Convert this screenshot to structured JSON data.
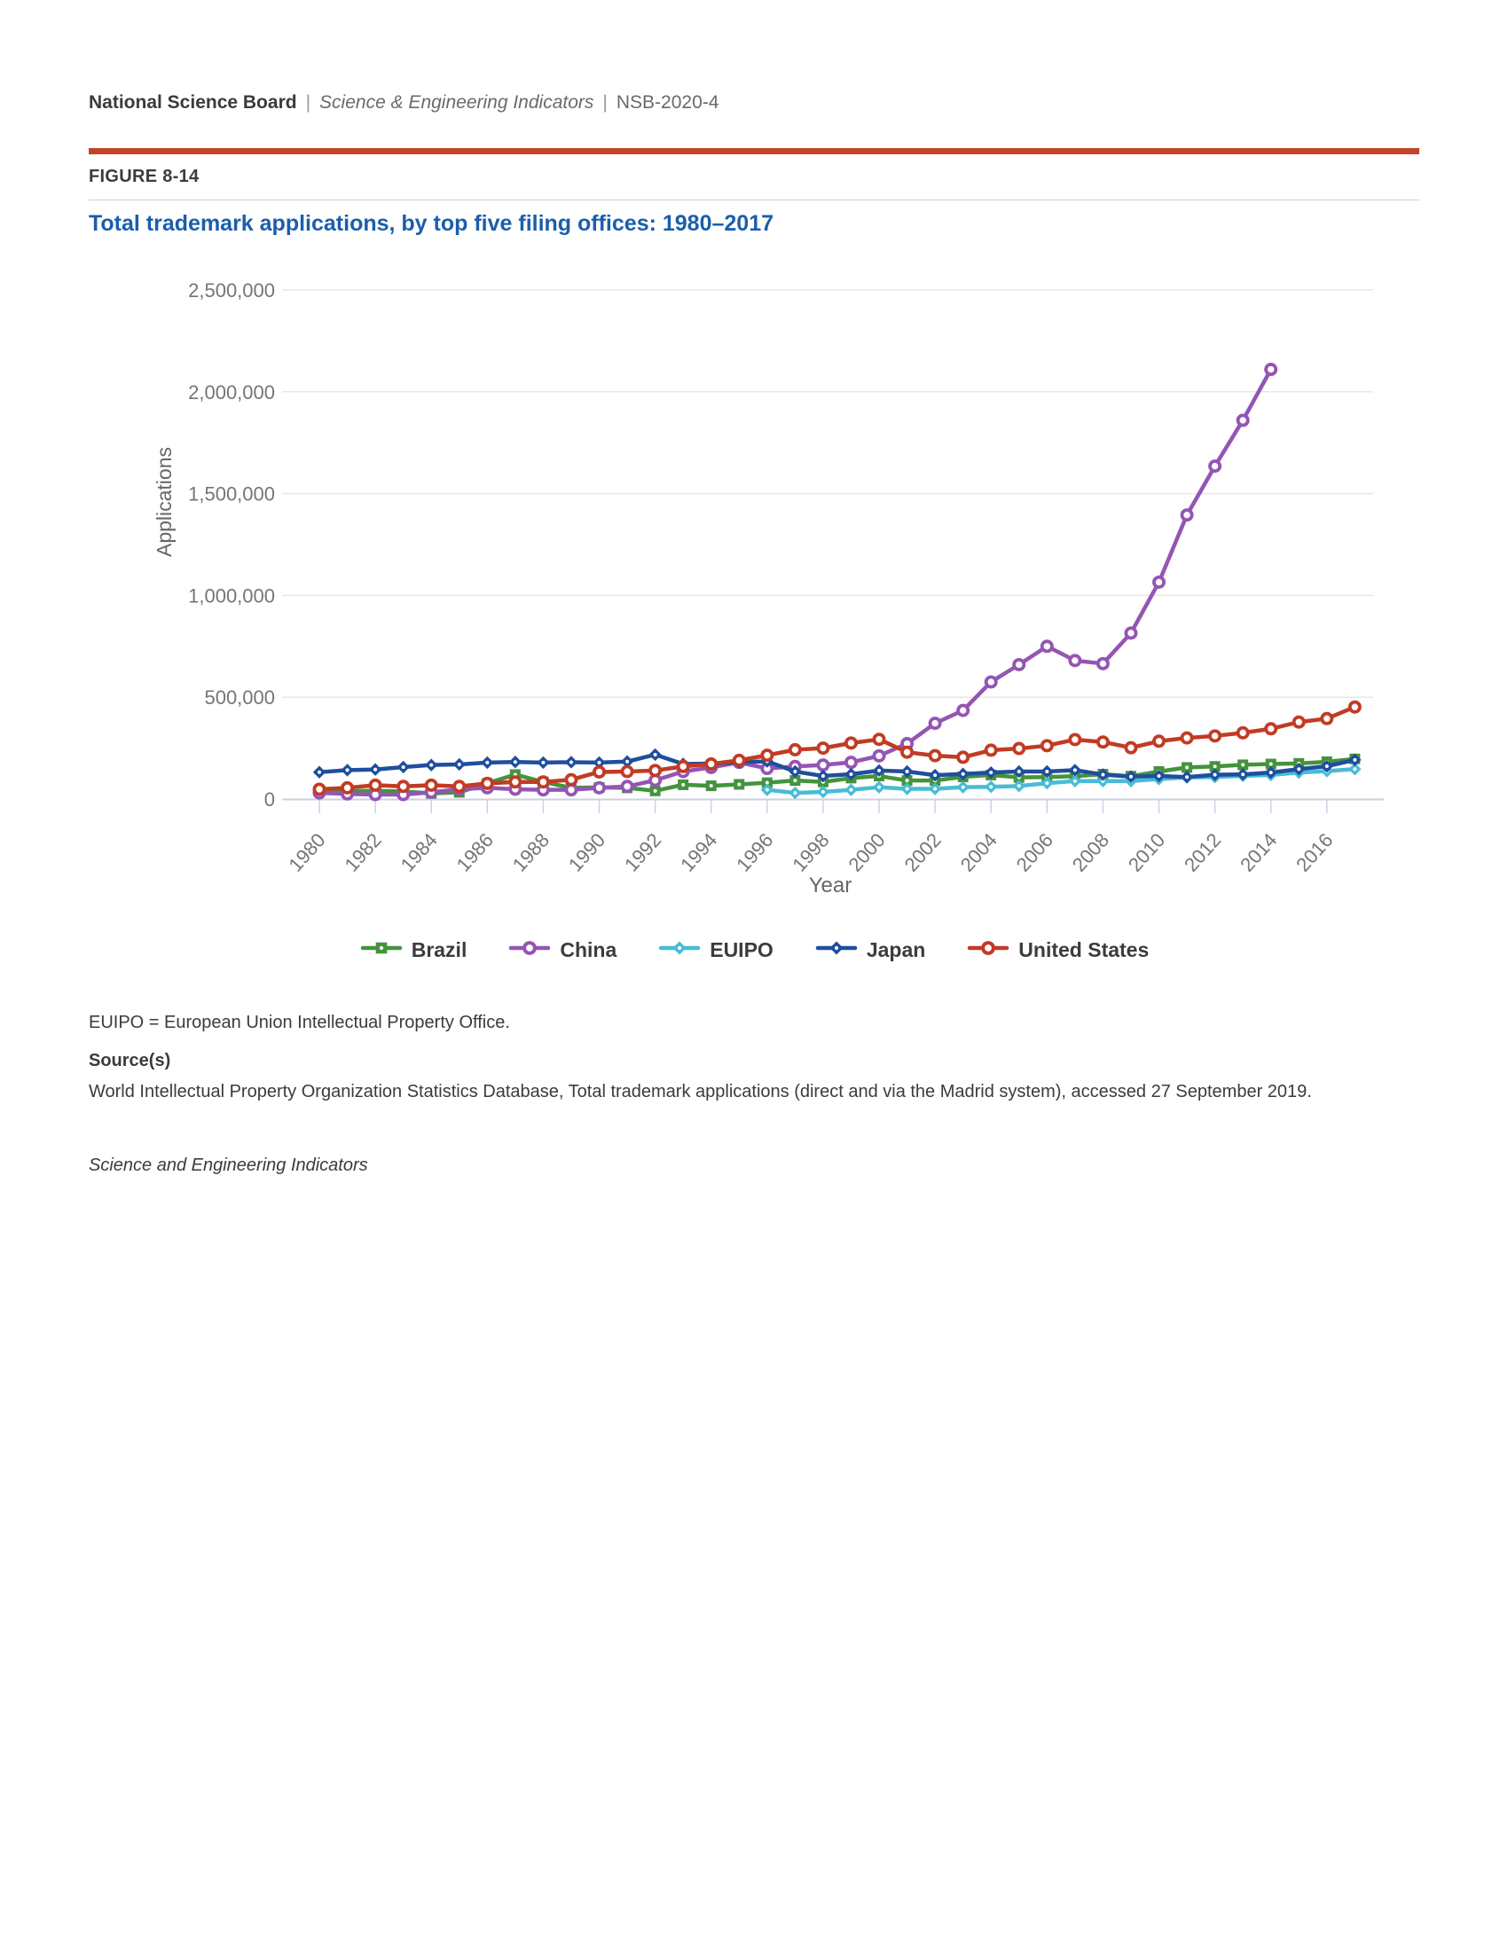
{
  "header": {
    "org": "National Science Board",
    "separator": "|",
    "publication": "Science & Engineering Indicators",
    "report_id": "NSB-2020-4",
    "figure_label": "FIGURE 8-14"
  },
  "colors": {
    "accent_rule": "#c0452c",
    "title_blue": "#1b5eac",
    "gridline": "#e7e7e7",
    "axis_line": "#c9d2e6",
    "tick_label": "#757575",
    "axis_title": "#666666"
  },
  "chart_data": {
    "type": "line",
    "title": "Total trademark applications, by top five filing offices: 1980–2017",
    "xlabel": "Year",
    "ylabel": "Applications",
    "xlim": [
      1980,
      2017
    ],
    "ylim": [
      0,
      2500000
    ],
    "grid": "horizontal",
    "legend_position": "bottom",
    "x_ticks": [
      1980,
      1982,
      1984,
      1986,
      1988,
      1990,
      1992,
      1994,
      1996,
      1998,
      2000,
      2002,
      2004,
      2006,
      2008,
      2010,
      2012,
      2014,
      2016
    ],
    "y_ticks": [
      {
        "value": 0,
        "label": "0"
      },
      {
        "value": 500000,
        "label": "500,000"
      },
      {
        "value": 1000000,
        "label": "1,000,000"
      },
      {
        "value": 1500000,
        "label": "1,500,000"
      },
      {
        "value": 2000000,
        "label": "2,000,000"
      },
      {
        "value": 2500000,
        "label": "2,500,000"
      }
    ],
    "series": [
      {
        "name": "Brazil",
        "color": "#44933d",
        "marker": "square",
        "start_year": 1980,
        "values": [
          42000,
          38000,
          41000,
          37000,
          28000,
          33000,
          77000,
          120000,
          84000,
          55000,
          57000,
          55000,
          40000,
          70000,
          65000,
          72000,
          80000,
          91000,
          84000,
          103000,
          113000,
          91000,
          91000,
          109000,
          118000,
          106000,
          108000,
          112000,
          122000,
          112000,
          135000,
          155000,
          160000,
          168000,
          172000,
          175000,
          183000,
          197000
        ]
      },
      {
        "name": "China",
        "color": "#9455b4",
        "marker": "circle",
        "start_year": 1980,
        "values": [
          30000,
          25000,
          22000,
          22000,
          33000,
          48000,
          55000,
          48000,
          45000,
          45000,
          55000,
          62000,
          92000,
          135000,
          155000,
          180000,
          150000,
          160000,
          167000,
          180000,
          212000,
          272000,
          372000,
          435000,
          575000,
          660000,
          750000,
          680000,
          665000,
          815000,
          1065000,
          1395000,
          1635000,
          1860000,
          2110000
        ]
      },
      {
        "name": "EUIPO",
        "color": "#48bcd6",
        "marker": "diamond",
        "start_year": 1996,
        "values": [
          45000,
          30000,
          35000,
          45000,
          58000,
          50000,
          50000,
          58000,
          60000,
          64000,
          78000,
          88000,
          88000,
          88000,
          98000,
          106000,
          108000,
          114000,
          118000,
          130000,
          137000,
          147000
        ]
      },
      {
        "name": "Japan",
        "color": "#1f4e9e",
        "marker": "diamond",
        "start_year": 1980,
        "values": [
          132000,
          142000,
          145000,
          157000,
          167000,
          170000,
          179000,
          182000,
          179000,
          181000,
          179000,
          184000,
          218000,
          172000,
          174000,
          180000,
          185000,
          135000,
          113000,
          122000,
          140000,
          135000,
          117000,
          123000,
          130000,
          135000,
          135000,
          142000,
          120000,
          110000,
          113000,
          108000,
          119000,
          121000,
          130000,
          147000,
          161000,
          192000
        ]
      },
      {
        "name": "United States",
        "color": "#c23b23",
        "marker": "circle",
        "start_year": 1980,
        "values": [
          48000,
          55000,
          68000,
          62000,
          68000,
          62000,
          77000,
          84000,
          84000,
          95000,
          133000,
          135000,
          140000,
          160000,
          172000,
          190000,
          215000,
          242000,
          250000,
          275000,
          293000,
          230000,
          213000,
          205000,
          240000,
          248000,
          262000,
          292000,
          280000,
          252000,
          284000,
          300000,
          310000,
          325000,
          345000,
          378000,
          395000,
          452000
        ]
      }
    ]
  },
  "footer": {
    "abbreviation_note": "EUIPO = European Union Intellectual Property Office.",
    "source_heading": "Source(s)",
    "source_text": "World Intellectual Property Organization Statistics Database, Total trademark applications (direct and via the Madrid system), accessed 27 September 2019.",
    "attribution": "Science and Engineering Indicators"
  }
}
